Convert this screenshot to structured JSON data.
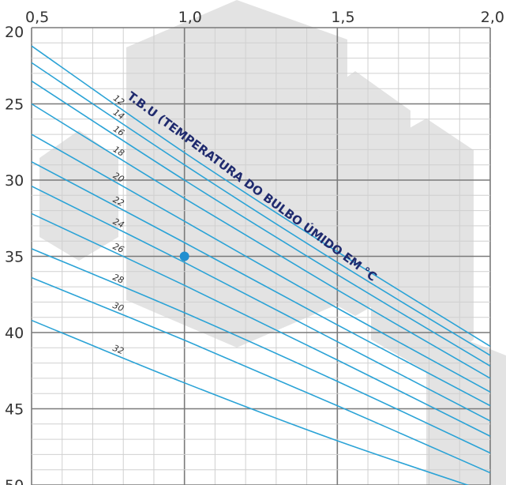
{
  "chart_data": {
    "type": "line",
    "title": "",
    "xlabel": "",
    "ylabel": "",
    "xlim": [
      0.5,
      2.0
    ],
    "ylim": [
      20,
      50
    ],
    "y_inverted": true,
    "x_axis_position": "top",
    "x_ticks": [
      0.5,
      1.0,
      1.5,
      2.0
    ],
    "x_tick_labels": [
      "0,5",
      "1,0",
      "1,5",
      "2,0"
    ],
    "y_ticks": [
      20,
      25,
      30,
      35,
      40,
      45,
      50
    ],
    "y_tick_labels": [
      "20",
      "25",
      "30",
      "35",
      "40",
      "45",
      "50"
    ],
    "grid": true,
    "x_minor_step": 0.1,
    "y_minor_step": 1,
    "annotation": "T.B.U (TEMPERATURA DO BULBO ÚMIDO EM °C",
    "series": [
      {
        "name": "12",
        "x": [
          0.5,
          1.0,
          1.5,
          2.0
        ],
        "y": [
          21.2,
          28.2,
          34.7,
          40.9
        ]
      },
      {
        "name": "14",
        "x": [
          0.5,
          1.0,
          1.5,
          2.0
        ],
        "y": [
          22.3,
          29.0,
          35.4,
          41.5
        ]
      },
      {
        "name": "16",
        "x": [
          0.5,
          1.0,
          1.5,
          2.0
        ],
        "y": [
          23.5,
          30.0,
          36.2,
          42.2
        ]
      },
      {
        "name": "18",
        "x": [
          0.5,
          1.0,
          1.5,
          2.0
        ],
        "y": [
          25.0,
          31.2,
          37.2,
          43.0
        ]
      },
      {
        "name": "20",
        "x": [
          0.5,
          1.0,
          1.5,
          2.0
        ],
        "y": [
          27.0,
          32.7,
          38.4,
          43.9
        ]
      },
      {
        "name": "22",
        "x": [
          0.5,
          1.0,
          1.5,
          2.0
        ],
        "y": [
          28.8,
          34.1,
          39.5,
          44.8
        ]
      },
      {
        "name": "24",
        "x": [
          0.5,
          1.0,
          1.5,
          2.0
        ],
        "y": [
          30.4,
          35.4,
          40.6,
          45.8
        ]
      },
      {
        "name": "26",
        "x": [
          0.5,
          1.0,
          1.5,
          2.0
        ],
        "y": [
          32.2,
          36.9,
          41.8,
          46.8
        ]
      },
      {
        "name": "28",
        "x": [
          0.5,
          1.0,
          1.5,
          2.0
        ],
        "y": [
          34.5,
          38.7,
          43.2,
          47.9
        ]
      },
      {
        "name": "30",
        "x": [
          0.5,
          1.0,
          1.5,
          2.0
        ],
        "y": [
          36.4,
          40.5,
          44.8,
          49.2
        ]
      },
      {
        "name": "32",
        "x": [
          0.5,
          1.0,
          1.5,
          2.0
        ],
        "y": [
          39.2,
          43.3,
          47.1,
          50.5
        ]
      }
    ],
    "points": [
      {
        "x": 1.0,
        "y": 35.0
      }
    ],
    "colors": {
      "curve": "#2ba3d6",
      "point": "#1f8fd0",
      "major_grid": "#7a7a7a",
      "minor_grid": "#d0d0d0",
      "annotation": "#1f2a6e",
      "watermark": "#e3e3e3"
    }
  }
}
